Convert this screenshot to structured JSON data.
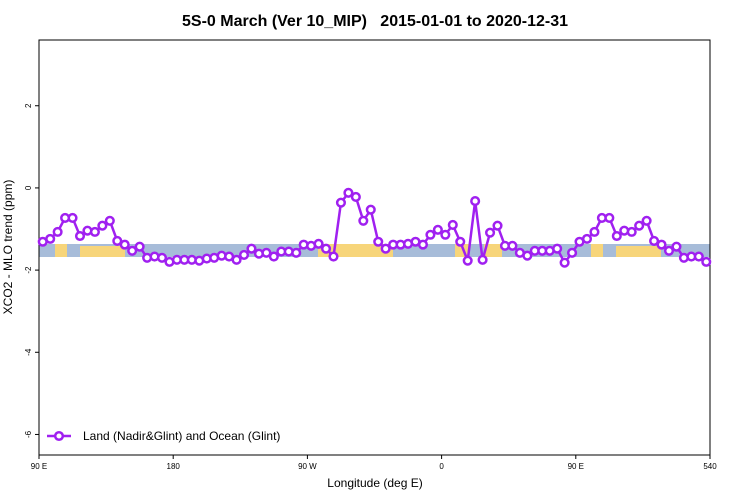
{
  "chart_data": {
    "type": "line",
    "title": "5S-0 March (Ver 10_MIP)   2015-01-01 to 2020-12-31",
    "x_label": "Longitude (deg E)",
    "y_label": "XCO2 - MLO trend (ppm)",
    "xlim": [
      90,
      540
    ],
    "ylim": [
      -6.5,
      3.6
    ],
    "xticks": [
      {
        "value": 90,
        "label": "90 E"
      },
      180,
      {
        "value": 270,
        "label": "90 W"
      },
      {
        "value": 360,
        "label": "0"
      },
      {
        "value": 450,
        "label": "90 E"
      },
      540
    ],
    "yticks": [
      2,
      0,
      -2,
      -4,
      -6
    ],
    "legend": "bottom-left",
    "x": [
      92.5,
      97.5,
      102.5,
      107.5,
      112.5,
      117.5,
      122.5,
      127.5,
      132.5,
      137.5,
      142.5,
      147.5,
      152.5,
      157.5,
      162.5,
      167.5,
      172.5,
      177.5,
      182.5,
      187.5,
      192.5,
      197.5,
      202.5,
      207.5,
      212.5,
      217.5,
      222.5,
      227.5,
      232.5,
      237.5,
      242.5,
      247.5,
      252.5,
      257.5,
      262.5,
      267.5,
      272.5,
      277.5,
      282.5,
      287.5,
      292.5,
      297.5,
      302.5,
      307.5,
      312.5,
      317.5,
      322.5,
      327.5,
      332.5,
      337.5,
      342.5,
      347.5,
      352.5,
      357.5,
      362.5,
      367.5,
      372.5,
      377.5,
      382.5,
      387.5,
      392.5,
      397.5,
      402.5,
      407.5,
      412.5,
      417.5,
      422.5,
      427.5,
      432.5,
      437.5,
      442.5,
      447.5,
      452.5,
      457.5,
      462.5,
      467.5,
      472.5,
      477.5,
      482.5,
      487.5,
      492.5,
      497.5,
      502.5,
      507.5,
      512.5,
      517.5,
      522.5,
      527.5,
      532.5,
      537.5
    ],
    "series": [
      {
        "name": "Land (Nadir&Glint) and Ocean (Glint)",
        "color": "#a020f0",
        "values": [
          -1.31,
          -1.24,
          -1.07,
          -0.73,
          -0.73,
          -1.17,
          -1.04,
          -1.07,
          -0.92,
          -0.8,
          -1.29,
          -1.38,
          -1.53,
          -1.43,
          -1.7,
          -1.67,
          -1.7,
          -1.8,
          -1.75,
          -1.75,
          -1.75,
          -1.77,
          -1.72,
          -1.7,
          -1.65,
          -1.67,
          -1.75,
          -1.63,
          -1.48,
          -1.6,
          -1.58,
          -1.67,
          -1.55,
          -1.55,
          -1.58,
          -1.38,
          -1.41,
          -1.36,
          -1.48,
          -1.67,
          -0.36,
          -0.12,
          -0.22,
          -0.8,
          -0.53,
          -1.31,
          -1.48,
          -1.38,
          -1.38,
          -1.36,
          -1.31,
          -1.38,
          -1.14,
          -1.02,
          -1.14,
          -0.9,
          -1.31,
          -1.77,
          -0.32,
          -1.75,
          -1.09,
          -0.92,
          -1.41,
          -1.41,
          -1.58,
          -1.65,
          -1.53,
          -1.53,
          -1.53,
          -1.48,
          -1.82,
          -1.58,
          -1.31,
          -1.24,
          -1.07,
          -0.73,
          -0.73,
          -1.17,
          -1.04,
          -1.07,
          -0.92,
          -0.8,
          -1.29,
          -1.38,
          -1.53,
          -1.43,
          -1.7,
          -1.67,
          -1.67,
          -1.8
        ]
      }
    ]
  }
}
